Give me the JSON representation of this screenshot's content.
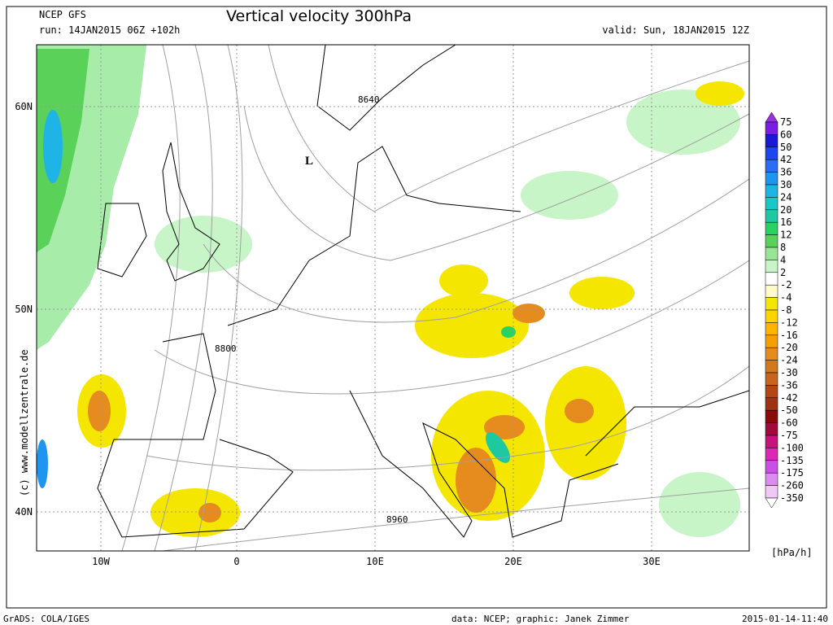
{
  "header": {
    "model": "NCEP GFS",
    "run": "run: 14JAN2015 06Z +102h",
    "title": "Vertical velocity 300hPa",
    "valid": "valid: Sun, 18JAN2015 12Z"
  },
  "map": {
    "lat_labels": [
      "60N",
      "50N",
      "40N"
    ],
    "lon_labels": [
      "10W",
      "0",
      "10E",
      "20E",
      "30E"
    ],
    "contour_labels": [
      "8640",
      "8800",
      "8960"
    ],
    "low_marker": "L"
  },
  "legend": {
    "labels": [
      "75",
      "60",
      "50",
      "42",
      "36",
      "30",
      "24",
      "20",
      "16",
      "12",
      "8",
      "4",
      "2",
      "-2",
      "-4",
      "-8",
      "-12",
      "-16",
      "-20",
      "-24",
      "-30",
      "-36",
      "-42",
      "-50",
      "-60",
      "-75",
      "-100",
      "-135",
      "-175",
      "-260",
      "-350"
    ],
    "colors": [
      "#9a30e6",
      "#7a1ee6",
      "#1a1ad6",
      "#1e46f0",
      "#2a6ef5",
      "#1e96f0",
      "#1eb4e6",
      "#18c8c8",
      "#1ec8a0",
      "#2ad264",
      "#5ad25a",
      "#96e696",
      "#c8f5c8",
      "#ffffff",
      "#fffac8",
      "#f5e600",
      "#ffd200",
      "#ffb400",
      "#f5a000",
      "#e68c1e",
      "#d2781e",
      "#c8641e",
      "#b44614",
      "#a03214",
      "#8c0a0a",
      "#a00a3c",
      "#c8147a",
      "#dc28b4",
      "#c850e6",
      "#dc8cf0",
      "#f0c8f5",
      "#ffffff"
    ],
    "unit": "[hPa/h]"
  },
  "credit": "(c) www.modellzentrale.de",
  "footer": {
    "left": "GrADS: COLA/IGES",
    "middle": "data: NCEP; graphic: Janek Zimmer",
    "right": "2015-01-14-11:40"
  }
}
